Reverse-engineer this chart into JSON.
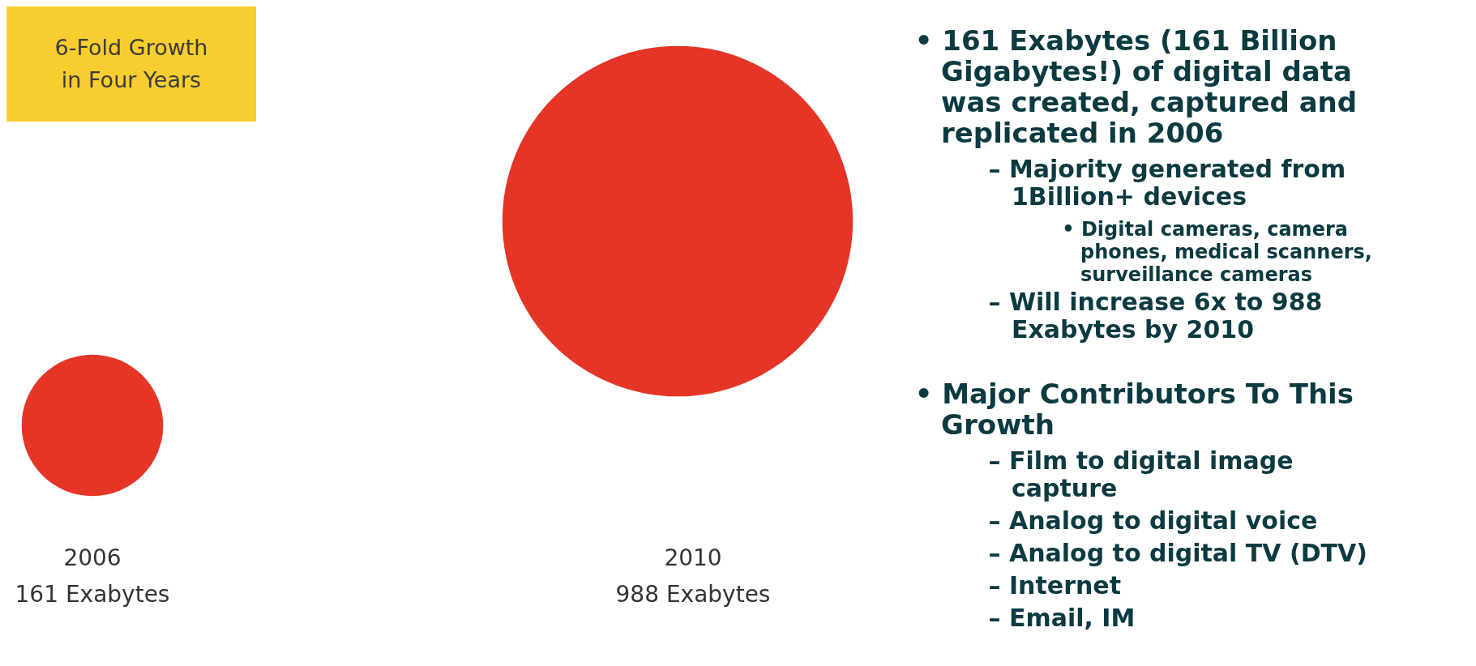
{
  "chart_data": {
    "type": "other",
    "categories": [
      "2006",
      "2010"
    ],
    "values": [
      161,
      988
    ],
    "value_labels": [
      "161 Exabytes",
      "988 Exabytes"
    ],
    "color": "#e53527",
    "annotations": [
      "6-Fold Growth in Four Years",
      "• 161 Exabytes (161 Billion Gigabytes!) of digital data was created, captured and replicated in 2006",
      "– Majority generated from 1Billion+ devices",
      "• Digital cameras, camera phones, medical scanners, surveillance cameras",
      "– Will increase 6x to 988 Exabytes by 2010",
      "• Major Contributors To This Growth",
      "– Film to digital image capture",
      "– Analog to digital voice",
      "– Analog to digital TV (DTV)",
      "– Internet",
      "– Email, IM"
    ]
  }
}
